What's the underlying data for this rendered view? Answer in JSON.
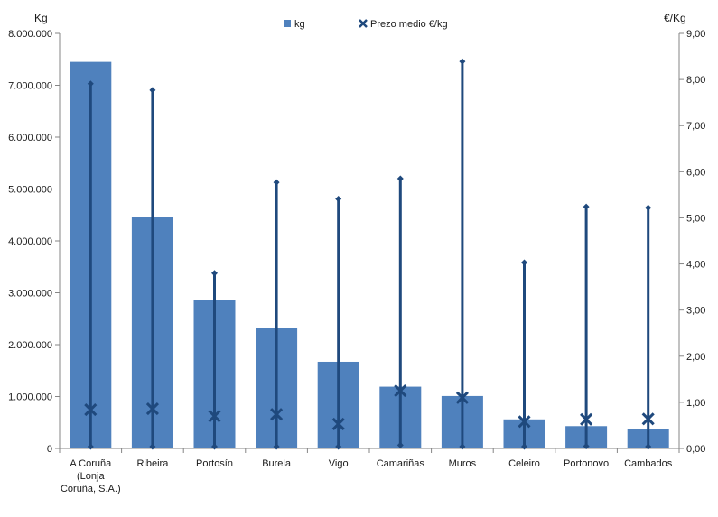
{
  "chart_data": {
    "type": "bar",
    "categories": [
      [
        "A Coruña",
        "(Lonja",
        "Coruña, S.A.)"
      ],
      [
        "Ribeira"
      ],
      [
        "Portosín"
      ],
      [
        "Burela"
      ],
      [
        "Vigo"
      ],
      [
        "Camariñas"
      ],
      [
        "Muros"
      ],
      [
        "Celeiro"
      ],
      [
        "Portonovo"
      ],
      [
        "Cambados"
      ]
    ],
    "y_left": {
      "label": "Kg",
      "min": 0,
      "max": 8000000,
      "step": 1000000,
      "tick_labels": [
        "0",
        "1.000.000",
        "2.000.000",
        "3.000.000",
        "4.000.000",
        "5.000.000",
        "6.000.000",
        "7.000.000",
        "8.000.000"
      ]
    },
    "y_right": {
      "label": "€/Kg",
      "min": 0,
      "max": 9,
      "step": 1,
      "tick_labels": [
        "0,00",
        "1,00",
        "2,00",
        "3,00",
        "4,00",
        "5,00",
        "6,00",
        "7,00",
        "8,00",
        "9,00"
      ]
    },
    "series": [
      {
        "name": "kg",
        "kind": "bar",
        "axis": "left",
        "color": "#4F81BD",
        "values": [
          7450000,
          4460000,
          2860000,
          2320000,
          1670000,
          1190000,
          1010000,
          560000,
          430000,
          380000
        ]
      },
      {
        "name": "Prezo medio €/kg",
        "kind": "marker-x",
        "axis": "right",
        "color": "#1F497D",
        "values": [
          0.84,
          0.86,
          0.7,
          0.74,
          0.53,
          1.25,
          1.1,
          0.58,
          0.63,
          0.64
        ]
      }
    ],
    "ranges": {
      "axis": "right",
      "color": "#1F497D",
      "low": [
        0.04,
        0.04,
        0.04,
        0.04,
        0.04,
        0.07,
        0.04,
        0.04,
        0.05,
        0.04
      ],
      "high": [
        7.91,
        7.77,
        3.8,
        5.77,
        5.41,
        5.85,
        8.39,
        4.03,
        5.24,
        5.22
      ]
    },
    "legend_position": "top",
    "grid": false
  }
}
